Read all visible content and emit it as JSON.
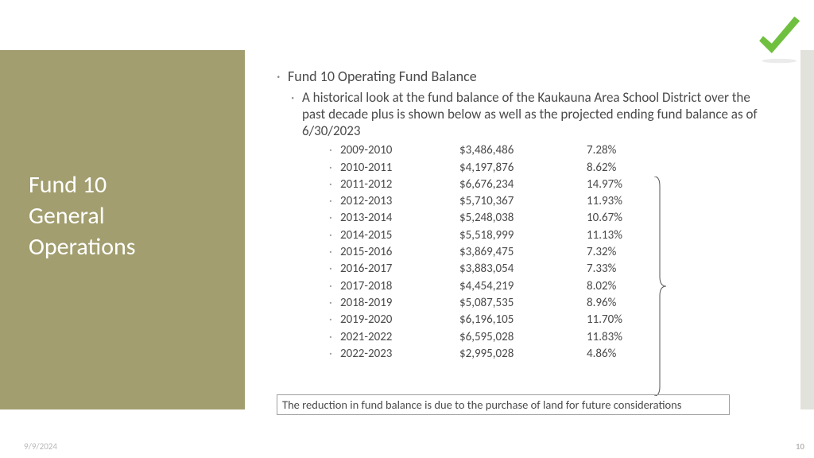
{
  "left": {
    "title": "Fund 10\nGeneral\nOperations"
  },
  "content": {
    "heading": "Fund 10 Operating Fund Balance",
    "sub": "A historical look at the fund balance of the Kaukauna Area School District over the past decade plus is shown below as well as the projected ending fund balance as of 6/30/2023",
    "rows": [
      {
        "year": "2009-2010",
        "amount": "$3,486,486",
        "pct": "7.28%"
      },
      {
        "year": "2010-2011",
        "amount": "$4,197,876",
        "pct": "8.62%"
      },
      {
        "year": "2011-2012",
        "amount": "$6,676,234",
        "pct": "14.97%"
      },
      {
        "year": "2012-2013",
        "amount": "$5,710,367",
        "pct": "11.93%"
      },
      {
        "year": "2013-2014",
        "amount": "$5,248,038",
        "pct": "10.67%"
      },
      {
        "year": "2014-2015",
        "amount": "$5,518,999",
        "pct": "11.13%"
      },
      {
        "year": "2015-2016",
        "amount": "$3,869,475",
        "pct": "7.32%"
      },
      {
        "year": "2016-2017",
        "amount": "$3,883,054",
        "pct": "7.33%"
      },
      {
        "year": "2017-2018",
        "amount": "$4,454,219",
        "pct": "8.02%"
      },
      {
        "year": "2018-2019",
        "amount": "$5,087,535",
        "pct": "8.96%"
      },
      {
        "year": "2019-2020",
        "amount": "$6,196,105",
        "pct": "11.70%"
      },
      {
        "year": "2021-2022",
        "amount": "$6,595,028",
        "pct": "11.83%"
      },
      {
        "year": "2022-2023",
        "amount": "$2,995,028",
        "pct": "4.86%"
      }
    ],
    "note": "The reduction in fund balance is due to the purchase of land for future considerations"
  },
  "footer": {
    "date": "9/9/2024",
    "page": "10"
  },
  "style": {
    "accent_bg": "#a29e6f",
    "text_color": "#4a4a4a",
    "check_color": "#70c040",
    "side_bar_color": "#e2e2dd",
    "brace_color": "#555555"
  }
}
